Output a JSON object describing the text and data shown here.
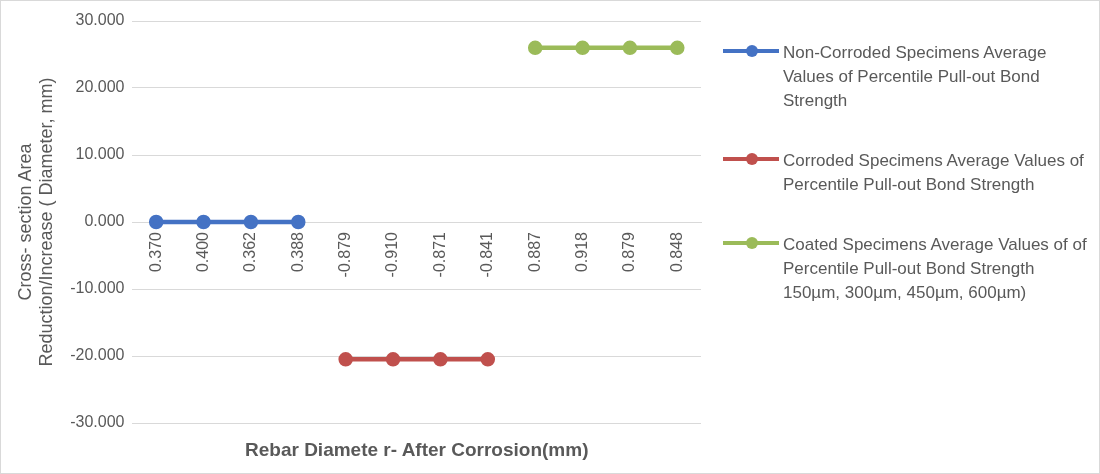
{
  "chart_data": {
    "type": "line",
    "xlabel": "Rebar Diamete r- After Corrosion(mm)",
    "ylabel": "Cross- section Area Reduction/Increase ( Diameter, mm)",
    "categories": [
      "0.370",
      "0.400",
      "0.362",
      "0.388",
      "-0.879",
      "-0.910",
      "-0.871",
      "-0.841",
      "0.887",
      "0.918",
      "0.879",
      "0.848"
    ],
    "series": [
      {
        "name": "Non-Corroded Specimens Average Values of Percentile Pull-out Bond Strength",
        "color": "#4472c4",
        "values": [
          0,
          0,
          0,
          0,
          null,
          null,
          null,
          null,
          null,
          null,
          null,
          null
        ]
      },
      {
        "name": "Corroded Specimens Average Values of Percentile Pull-out Bond Strength",
        "color": "#c0504d",
        "values": [
          null,
          null,
          null,
          null,
          -20.5,
          -20.5,
          -20.5,
          -20.5,
          null,
          null,
          null,
          null
        ]
      },
      {
        "name": "Coated Specimens Average Values of of Percentile Pull-out Bond Strength 150µm, 300µm, 450µm, 600µm)",
        "color": "#9bbb59",
        "values": [
          null,
          null,
          null,
          null,
          null,
          null,
          null,
          null,
          26,
          26,
          26,
          26
        ]
      }
    ],
    "ylim": [
      -30,
      30
    ],
    "yticks": [
      {
        "value": -30,
        "label": "-30.000"
      },
      {
        "value": -20,
        "label": "-20.000"
      },
      {
        "value": -10,
        "label": "-10.000"
      },
      {
        "value": 0,
        "label": "0.000"
      },
      {
        "value": 10,
        "label": "10.000"
      },
      {
        "value": 20,
        "label": "20.000"
      },
      {
        "value": 30,
        "label": "30.000"
      }
    ],
    "grid": "y",
    "legend": "right",
    "marker": "circle"
  }
}
